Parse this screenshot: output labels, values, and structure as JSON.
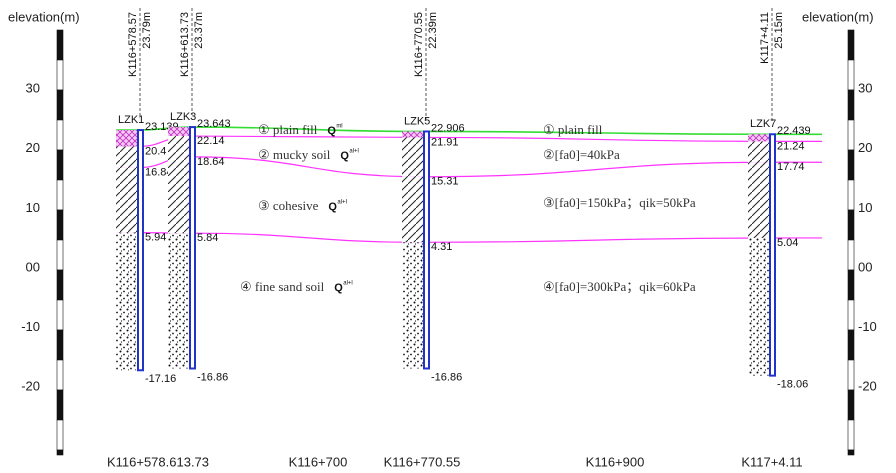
{
  "axis": {
    "label": "elevation(m)",
    "ticks": [
      30,
      20,
      10,
      {
        "value": 0,
        "label": "00"
      },
      -10,
      -20
    ]
  },
  "boreholes": [
    {
      "name": "LZK1",
      "station": "K116+578.57",
      "depth": "23.79m",
      "elevations": [
        23.139,
        20.4,
        16.84,
        5.94,
        -17.16
      ]
    },
    {
      "name": "LZK3",
      "station": "K116+613.73",
      "depth": "23.37m",
      "elevations": [
        23.643,
        22.14,
        18.64,
        5.84,
        -16.86
      ]
    },
    {
      "name": "LZK5",
      "station": "K116+770.55",
      "depth": "22.39m",
      "elevations": [
        22.906,
        21.91,
        15.31,
        4.31,
        -16.86
      ]
    },
    {
      "name": "LZK7",
      "station": "K117+4.11",
      "depth": "25.15m",
      "elevations": [
        22.439,
        21.24,
        17.74,
        5.04,
        -18.06
      ]
    }
  ],
  "layers": [
    {
      "name": "① plain fill",
      "code": "ml",
      "note": "① plain fill"
    },
    {
      "name": "② mucky soil",
      "code": "al+l",
      "note": "②[fa0]=40kPa"
    },
    {
      "name": "③ cohesive",
      "code": "al+l",
      "note": "③[fa0]=150kPa；qik=50kPa"
    },
    {
      "name": "④ fine sand soil",
      "code": "al+l",
      "note": "④[fa0]=300kPa；qik=60kPa"
    }
  ],
  "q_symbol": "Q",
  "stations": [
    "K116+578.613.73",
    "K116+700",
    "K116+770.55",
    "K116+900",
    "K117+4.11"
  ]
}
